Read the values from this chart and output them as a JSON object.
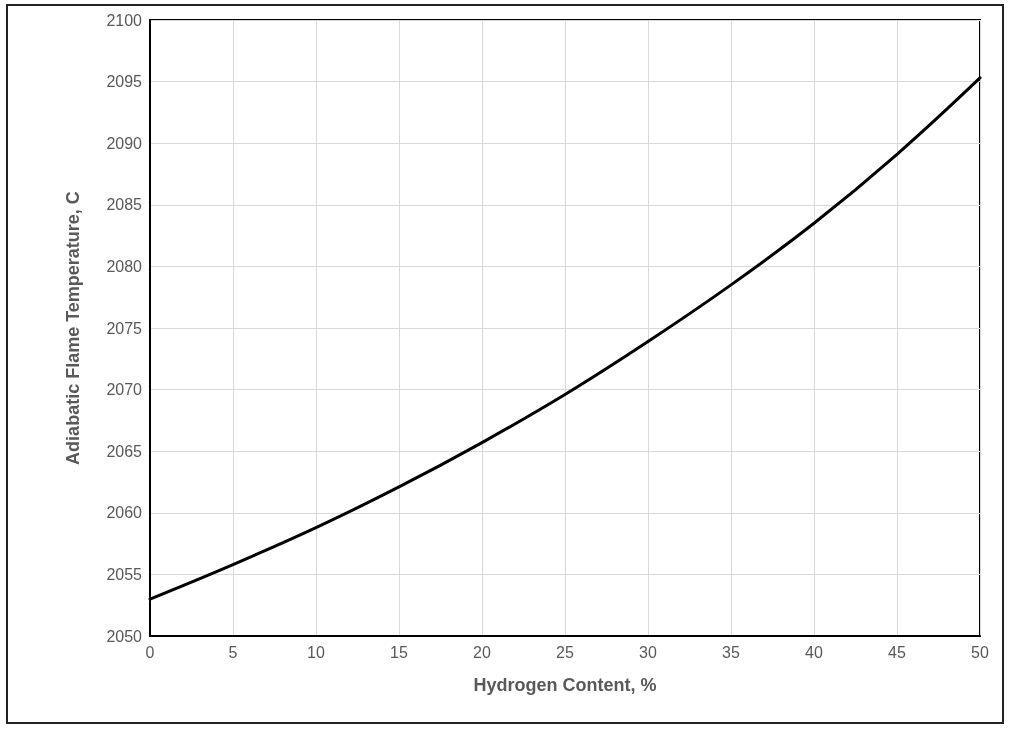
{
  "chart_data": {
    "type": "line",
    "xlabel": "Hydrogen Content, %",
    "ylabel": "Adiabatic Flame Temperature, C",
    "x": [
      0,
      5,
      10,
      15,
      20,
      25,
      30,
      35,
      40,
      45,
      50
    ],
    "series": [
      {
        "color": "#000000",
        "values": [
          2053,
          2055.8,
          2058.8,
          2062.1,
          2065.7,
          2069.6,
          2073.9,
          2078.5,
          2083.5,
          2089.1,
          2095.3
        ]
      }
    ],
    "xlim": [
      0,
      50
    ],
    "xticks": [
      0,
      5,
      10,
      15,
      20,
      25,
      30,
      35,
      40,
      45,
      50
    ],
    "ylim": [
      2050,
      2100
    ],
    "yticks": [
      2050,
      2055,
      2060,
      2065,
      2070,
      2075,
      2080,
      2085,
      2090,
      2095,
      2100
    ],
    "grid": true,
    "marker": "none",
    "line_style": "solid"
  }
}
